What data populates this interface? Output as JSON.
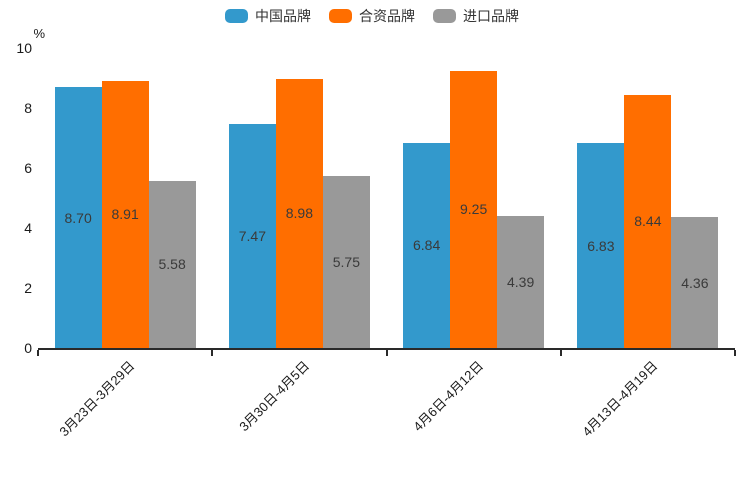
{
  "colors": {
    "series_china": "#3399cc",
    "series_joint": "#ff6e00",
    "series_import": "#999999",
    "bar_value_text": "#3a3a3a",
    "axis_line": "#2a2a2a",
    "tick_text": "#1a1a1a"
  },
  "legend": {
    "position": "top-center",
    "items": [
      "中国品牌",
      "合资品牌",
      "进口品牌"
    ]
  },
  "y_axis": {
    "unit": "%",
    "tick_labels": [
      "0",
      "2",
      "4",
      "6",
      "8",
      "10"
    ]
  },
  "chart_data": {
    "type": "bar",
    "title": "",
    "xlabel": "",
    "ylabel": "%",
    "ylim": [
      0,
      10
    ],
    "y_ticks": [
      0,
      2,
      4,
      6,
      8,
      10
    ],
    "grid": false,
    "legend_position": "top",
    "x_label_rotation_deg": 45,
    "categories": [
      "3月23日-3月29日",
      "3月30日-4月5日",
      "4月6日-4月12日",
      "4月13日-4月19日"
    ],
    "series": [
      {
        "name": "中国品牌",
        "color": "#3399cc",
        "values": [
          8.7,
          7.47,
          6.84,
          6.83
        ]
      },
      {
        "name": "合资品牌",
        "color": "#ff6e00",
        "values": [
          8.91,
          8.98,
          9.25,
          8.44
        ]
      },
      {
        "name": "进口品牌",
        "color": "#999999",
        "values": [
          5.58,
          5.75,
          4.39,
          4.36
        ]
      }
    ],
    "value_labels_decimals": 2
  }
}
